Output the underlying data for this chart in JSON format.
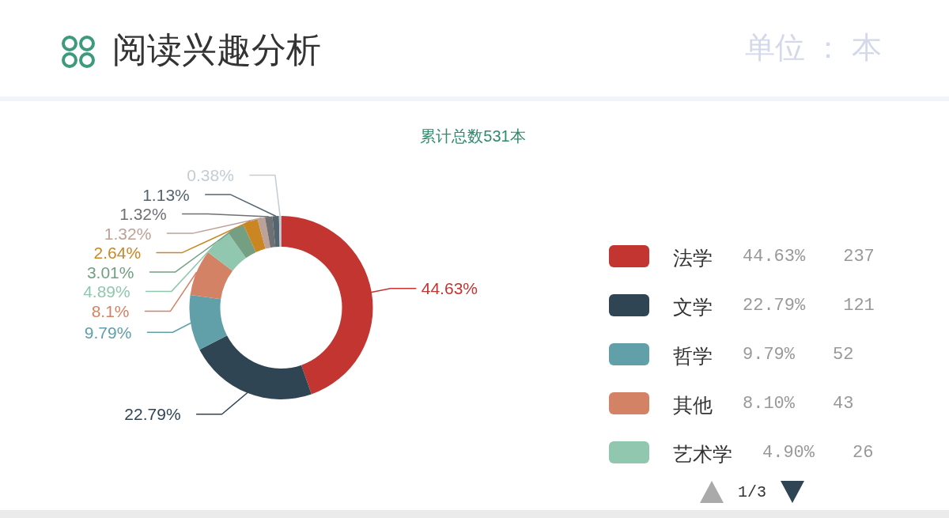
{
  "chart_data": {
    "type": "donut",
    "title": "阅读兴趣分析",
    "subtitle": "累计总数531本",
    "categories": [
      "法学",
      "文学",
      "哲学",
      "其他",
      "艺术学",
      null,
      null,
      null,
      null,
      null,
      null
    ],
    "values": [
      44.63,
      22.79,
      9.79,
      8.1,
      4.89,
      3.01,
      2.64,
      1.32,
      1.32,
      1.13,
      0.38
    ],
    "colors": [
      "#c23531",
      "#2f4554",
      "#61a0a8",
      "#d48265",
      "#91c7ae",
      "#749f83",
      "#ca8622",
      "#bda29a",
      "#6e7074",
      "#546570",
      "#c4ccd3"
    ],
    "value_labels": [
      "44.63%",
      "22.79%",
      "9.79%",
      "8.1%",
      "4.89%",
      "3.01%",
      "2.64%",
      "1.32%",
      "1.32%",
      "1.13%",
      "0.38%"
    ],
    "legend": "right",
    "annotations": [
      "单位 ： 本",
      "44.63%",
      "237",
      "22.79%",
      "121",
      "9.79%",
      "52",
      "8.10%",
      "43",
      "4.90%",
      "26",
      "1/3"
    ]
  }
}
